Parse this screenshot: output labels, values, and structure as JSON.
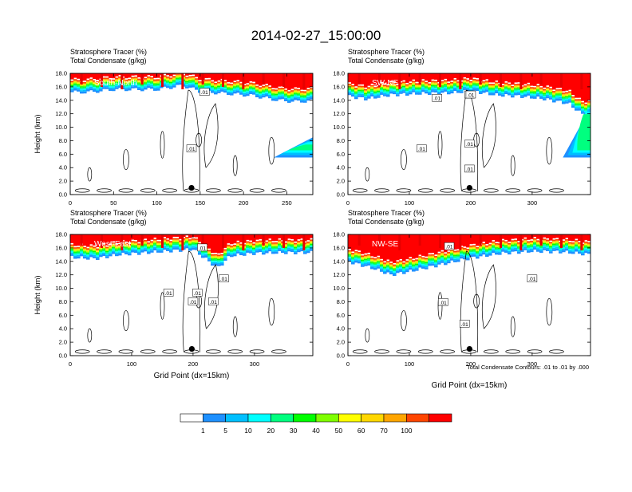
{
  "title": "2014-02-27_15:00:00",
  "footer_note": "Total Condensate Contours: .01 to .01 by .000",
  "colors": {
    "levels": [
      "#ffffff",
      "#1e90ff",
      "#00bfff",
      "#00ffff",
      "#00ff7f",
      "#00ff00",
      "#7fff00",
      "#ffff00",
      "#ffd700",
      "#ffa500",
      "#ff4500",
      "#ff0000"
    ],
    "contour": "#000000",
    "marker": "#000000",
    "region_label": "#ffffff"
  },
  "chart_data": [
    {
      "type": "heatmap",
      "title_line1": "Stratosphere Tracer   (%)",
      "title_line2": "Total Condensate   (g/kg)",
      "region_label": "South-North",
      "ylabel": "Height (km)",
      "xlabel": "",
      "xlim": [
        0,
        280
      ],
      "ylim": [
        0,
        18
      ],
      "xticks": [
        0,
        50,
        100,
        150,
        200,
        250
      ],
      "xtick_labels": [
        "0",
        "50",
        "100",
        "150",
        "200",
        "250"
      ],
      "yticks": [
        0,
        2,
        4,
        6,
        8,
        10,
        12,
        14,
        16,
        18
      ],
      "ytick_labels": [
        "0.0",
        "2.0",
        "4.0",
        "6.0",
        "8.0",
        "10.0",
        "12.0",
        "14.0",
        "16.0",
        "18.0"
      ],
      "marker": {
        "x": 140,
        "y": 1.0
      },
      "contour_labels": [
        {
          "x": 155,
          "y": 15.2,
          "text": ".01"
        },
        {
          "x": 140,
          "y": 6.8,
          "text": ".01"
        }
      ],
      "tropopause_km": [
        [
          0,
          15.2
        ],
        [
          20,
          15.2
        ],
        [
          50,
          15.6
        ],
        [
          100,
          15.6
        ],
        [
          130,
          16.2
        ],
        [
          150,
          15.3
        ],
        [
          180,
          15.0
        ],
        [
          210,
          14.7
        ],
        [
          240,
          14.0
        ],
        [
          260,
          13.8
        ],
        [
          280,
          13.9
        ]
      ],
      "tongue": {
        "x0": 235,
        "x1": 280,
        "y0": 5.5,
        "y1": 8.5
      }
    },
    {
      "type": "heatmap",
      "title_line1": "Stratosphere Tracer   (%)",
      "title_line2": "Total Condensate   (g/kg)",
      "region_label": "SW-NE",
      "ylabel": "",
      "xlabel": "",
      "xlim": [
        0,
        395
      ],
      "ylim": [
        0,
        18
      ],
      "xticks": [
        0,
        100,
        200,
        300
      ],
      "xtick_labels": [
        "0",
        "100",
        "200",
        "300"
      ],
      "yticks": [
        0,
        2,
        4,
        6,
        8,
        10,
        12,
        14,
        16,
        18
      ],
      "ytick_labels": [
        "0.0",
        "2.0",
        "4.0",
        "6.0",
        "8.0",
        "10.0",
        "12.0",
        "14.0",
        "16.0",
        "18.0"
      ],
      "marker": {
        "x": 198,
        "y": 1.0
      },
      "contour_labels": [
        {
          "x": 145,
          "y": 14.3,
          "text": ".01"
        },
        {
          "x": 120,
          "y": 6.8,
          "text": ".01"
        },
        {
          "x": 198,
          "y": 7.5,
          "text": ".01"
        },
        {
          "x": 198,
          "y": 14.8,
          "text": ".01"
        },
        {
          "x": 200,
          "y": 14.8,
          "text": ".01"
        },
        {
          "x": 198,
          "y": 3.8,
          "text": ".01"
        }
      ],
      "tropopause_km": [
        [
          0,
          14.6
        ],
        [
          30,
          14.2
        ],
        [
          70,
          14.8
        ],
        [
          120,
          15.0
        ],
        [
          170,
          15.1
        ],
        [
          200,
          15.4
        ],
        [
          240,
          14.8
        ],
        [
          280,
          14.6
        ],
        [
          320,
          14.2
        ],
        [
          360,
          13.5
        ],
        [
          380,
          12.0
        ],
        [
          395,
          12.0
        ]
      ],
      "tongue": {
        "x0": 350,
        "x1": 395,
        "y0": 5.5,
        "y1": 13
      }
    },
    {
      "type": "heatmap",
      "title_line1": "Stratosphere Tracer   (%)",
      "title_line2": "Total Condensate   (g/kg)",
      "region_label": "West-East",
      "ylabel": "Height (km)",
      "xlabel": "Grid Point (dx=15km)",
      "xlim": [
        0,
        395
      ],
      "ylim": [
        0,
        18
      ],
      "xticks": [
        0,
        100,
        200,
        300
      ],
      "xtick_labels": [
        "0",
        "100",
        "200",
        "300"
      ],
      "yticks": [
        0,
        2,
        4,
        6,
        8,
        10,
        12,
        14,
        16,
        18
      ],
      "ytick_labels": [
        "0.0",
        "2.0",
        "4.0",
        "6.0",
        "8.0",
        "10.0",
        "12.0",
        "14.0",
        "16.0",
        "18.0"
      ],
      "marker": {
        "x": 198,
        "y": 1.0
      },
      "contour_labels": [
        {
          "x": 215,
          "y": 16.0,
          "text": ".01"
        },
        {
          "x": 250,
          "y": 11.4,
          "text": ".01"
        },
        {
          "x": 160,
          "y": 9.3,
          "text": ".01"
        },
        {
          "x": 200,
          "y": 8.0,
          "text": ".01"
        },
        {
          "x": 233,
          "y": 8.0,
          "text": ".01"
        },
        {
          "x": 207,
          "y": 9.3,
          "text": ".01"
        }
      ],
      "tropopause_km": [
        [
          0,
          14.6
        ],
        [
          40,
          14.4
        ],
        [
          80,
          15.0
        ],
        [
          140,
          15.4
        ],
        [
          200,
          15.8
        ],
        [
          240,
          13.0
        ],
        [
          260,
          14.8
        ],
        [
          300,
          15.2
        ],
        [
          350,
          15.3
        ],
        [
          395,
          15.3
        ]
      ],
      "tongue": null
    },
    {
      "type": "heatmap",
      "title_line1": "Stratosphere Tracer   (%)",
      "title_line2": "Total Condensate   (g/kg)",
      "region_label": "NW-SE",
      "ylabel": "",
      "xlabel": "Grid Point (dx=15km)",
      "xlim": [
        0,
        395
      ],
      "ylim": [
        0,
        18
      ],
      "xticks": [
        0,
        100,
        200,
        300
      ],
      "xtick_labels": [
        "0",
        "100",
        "200",
        "300"
      ],
      "yticks": [
        0,
        2,
        4,
        6,
        8,
        10,
        12,
        14,
        16,
        18
      ],
      "ytick_labels": [
        "0.0",
        "2.0",
        "4.0",
        "6.0",
        "8.0",
        "10.0",
        "12.0",
        "14.0",
        "16.0",
        "18.0"
      ],
      "marker": {
        "x": 198,
        "y": 1.0
      },
      "contour_labels": [
        {
          "x": 165,
          "y": 16.2,
          "text": ".01"
        },
        {
          "x": 300,
          "y": 11.4,
          "text": ".01"
        },
        {
          "x": 155,
          "y": 7.9,
          "text": ".01"
        },
        {
          "x": 190,
          "y": 4.7,
          "text": ".01"
        }
      ],
      "tropopause_km": [
        [
          0,
          14.0
        ],
        [
          40,
          13.0
        ],
        [
          70,
          12.0
        ],
        [
          100,
          12.5
        ],
        [
          150,
          13.5
        ],
        [
          200,
          14.5
        ],
        [
          250,
          15.2
        ],
        [
          300,
          15.5
        ],
        [
          350,
          15.4
        ],
        [
          395,
          15.0
        ]
      ],
      "tongue": null
    },
    {
      "type": "colorbar",
      "labels": [
        "1",
        "5",
        "10",
        "20",
        "30",
        "40",
        "50",
        "60",
        "70",
        "100"
      ],
      "bins": 12
    }
  ]
}
